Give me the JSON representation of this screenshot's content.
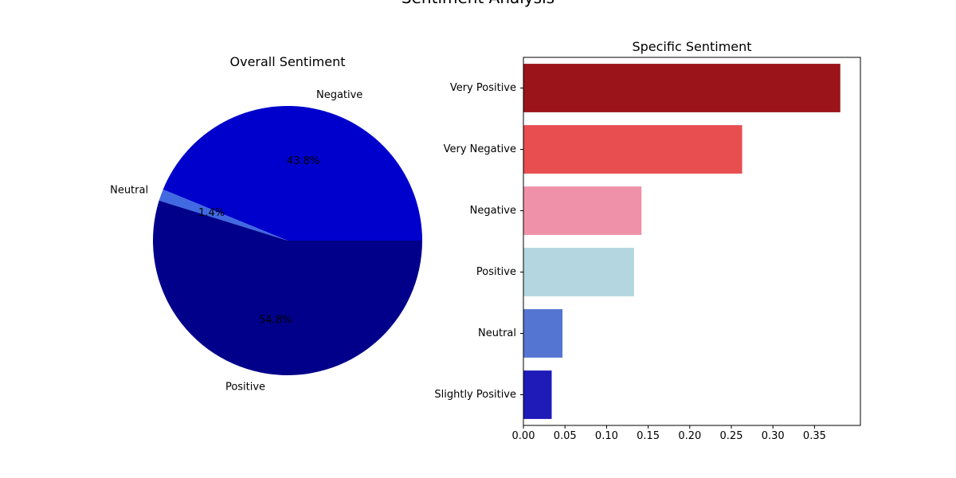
{
  "figure": {
    "title": "Sentiment Analysis"
  },
  "chart_data": [
    {
      "type": "pie",
      "title": "Overall Sentiment",
      "slices": [
        {
          "label": "Negative",
          "percent": 43.8,
          "pct_label": "43.8%",
          "color": "#0000cd"
        },
        {
          "label": "Neutral",
          "percent": 1.4,
          "pct_label": "1.4%",
          "color": "#4169e1"
        },
        {
          "label": "Positive",
          "percent": 54.8,
          "pct_label": "54.8%",
          "color": "#00008b"
        }
      ]
    },
    {
      "type": "bar",
      "orientation": "horizontal",
      "title": "Specific Sentiment",
      "categories": [
        "Very Positive",
        "Very Negative",
        "Negative",
        "Positive",
        "Neutral",
        "Slightly Positive"
      ],
      "values": [
        0.381,
        0.263,
        0.142,
        0.133,
        0.047,
        0.034
      ],
      "colors": [
        "#9b1419",
        "#e84d4f",
        "#ef92a9",
        "#b3d6e0",
        "#5575d2",
        "#1f1bb8"
      ],
      "xlim": [
        0,
        0.4
      ],
      "xticks": [
        "0.00",
        "0.05",
        "0.10",
        "0.15",
        "0.20",
        "0.25",
        "0.30",
        "0.35"
      ],
      "grid": false
    }
  ]
}
